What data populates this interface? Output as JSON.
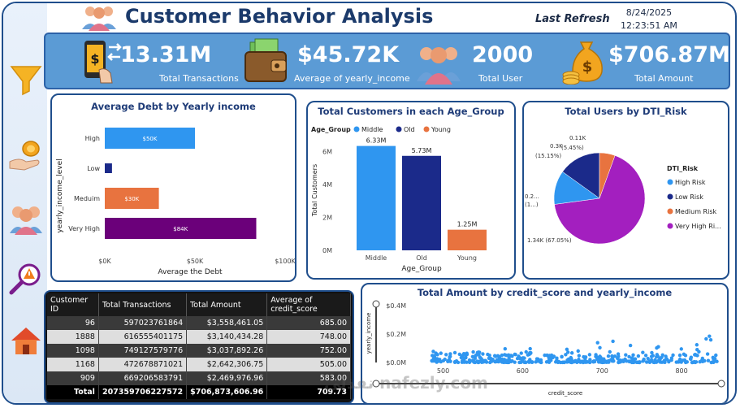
{
  "header": {
    "title": "Customer Behavior Analysis",
    "refresh_label": "Last Refresh",
    "refresh_date": "8/24/2025",
    "refresh_time": "12:23:51 AM"
  },
  "kpis": [
    {
      "value": "13.31M",
      "label": "Total Transactions",
      "icon": "phone-payment-icon"
    },
    {
      "value": "$45.72K",
      "label": "Average of yearly_income",
      "icon": "wallet-icon"
    },
    {
      "value": "2000",
      "label": "Total User",
      "icon": "users-icon"
    },
    {
      "value": "$706.87M",
      "label": "Total Amount",
      "icon": "money-bag-icon"
    }
  ],
  "sidebar": [
    "filter-icon",
    "coins-hand-icon",
    "group-icon",
    "risk-search-icon",
    "home-icon"
  ],
  "debt_chart": {
    "title": "Average Debt by Yearly income",
    "xlabel": "Average the Debt",
    "ylabel": "yearly_income_level",
    "ticks": [
      "$0K",
      "$50K",
      "$100K"
    ],
    "chart_data": {
      "type": "bar",
      "categories": [
        "High",
        "Low",
        "Meduim",
        "Very High"
      ],
      "values": [
        50,
        4,
        30,
        84
      ],
      "value_labels": [
        "$50K",
        "",
        "$30K",
        "$84K"
      ],
      "colors": [
        "#2f96f0",
        "#1b2a8a",
        "#e8733f",
        "#6b007a"
      ],
      "xlim": [
        0,
        100
      ]
    }
  },
  "age_chart": {
    "title": "Total Customers in each Age_Group",
    "legend_title": "Age_Group",
    "xlabel": "Age_Group",
    "ylabel": "Total Customers",
    "ticks": [
      "0M",
      "2M",
      "4M",
      "6M"
    ],
    "chart_data": {
      "type": "bar",
      "categories": [
        "Middle",
        "Old",
        "Young"
      ],
      "values": [
        6.33,
        5.73,
        1.25
      ],
      "value_labels": [
        "6.33M",
        "5.73M",
        "1.25M"
      ],
      "colors": [
        "#2f96f0",
        "#1b2a8a",
        "#e8733f"
      ],
      "ylim": [
        0,
        7
      ]
    }
  },
  "dti_chart": {
    "title": "Total Users by DTI_Risk",
    "legend_title": "DTI_Risk",
    "slice_labels": [
      "0.2...",
      "(1...)",
      "0.3K",
      "(15.15%)",
      "0.11K",
      "(5.45%)",
      "1.34K (67.05%)"
    ],
    "chart_data": {
      "type": "pie",
      "categories": [
        "High Risk",
        "Low Risk",
        "Medium Risk",
        "Very High Ri..."
      ],
      "values": [
        0.24,
        0.3,
        0.11,
        1.34
      ],
      "colors": [
        "#2f96f0",
        "#1b2a8a",
        "#e8733f",
        "#a31fbf"
      ]
    }
  },
  "table": {
    "columns": [
      "Customer ID",
      "Total Transactions",
      "Total Amount",
      "Average of credit_score"
    ],
    "rows": [
      [
        "96",
        "597023761864",
        "$3,558,461.05",
        "685.00"
      ],
      [
        "1888",
        "616555401175",
        "$3,140,434.28",
        "748.00"
      ],
      [
        "1098",
        "749127579776",
        "$3,037,892.26",
        "752.00"
      ],
      [
        "1168",
        "472678871021",
        "$2,642,306.75",
        "505.00"
      ],
      [
        "909",
        "669206583791",
        "$2,469,976.96",
        "583.00"
      ]
    ],
    "total": [
      "Total",
      "207359706227572",
      "$706,873,606.96",
      "709.73"
    ]
  },
  "scatter_chart": {
    "title": "Total Amount by credit_score and yearly_income",
    "xlabel": "credit_score",
    "ylabel": "yearly_income",
    "yticks": [
      "$0.4M",
      "$0.2M",
      "$0.0M"
    ],
    "xticks": [
      "500",
      "600",
      "700",
      "800"
    ],
    "chart_data": {
      "type": "scatter",
      "xlim": [
        480,
        850
      ],
      "ylim": [
        0,
        0.4
      ],
      "color": "#2f96f0"
    }
  },
  "watermark": "نفذلي nafezly.com"
}
